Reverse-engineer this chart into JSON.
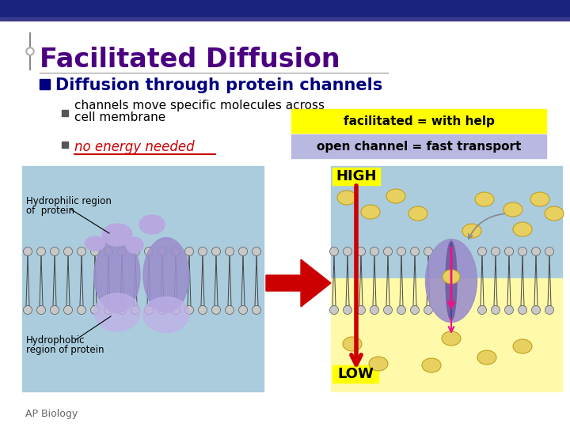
{
  "title": "Facilitated Diffusion",
  "subtitle": "Diffusion through protein channels",
  "bullet1_line1": "channels move specific molecules across",
  "bullet1_line2": "cell membrane",
  "bullet2": "no energy needed",
  "label1": "facilitated = with help",
  "label2": "open channel = fast transport",
  "high_label": "HIGH",
  "low_label": "LOW",
  "hydrophilic_line1": "Hydrophilic region",
  "hydrophilic_line2": "of  protein",
  "hydrophobic_line1": "Hydrophobic",
  "hydrophobic_line2": "region of protein",
  "ap_biology": "AP Biology",
  "bg_color": "#ffffff",
  "top_bar_color": "#1a237e",
  "accent_bar_color": "#3a3a8a",
  "title_color": "#4a0080",
  "subtitle_color": "#000080",
  "bullet_color": "#000000",
  "bullet2_color": "#cc0000",
  "bullet_diamond_color": "#555555",
  "yellow_box_color": "#ffff00",
  "lavender_box_color": "#b8b8e0",
  "light_blue_bg": "#aaccdd",
  "yellow_region": "#fffaaa",
  "membrane_head_color": "#c8c8c8",
  "membrane_protein_color": "#9b8fcc",
  "protein_dark_color": "#7060a0",
  "protein_light_color": "#b8a8e0",
  "molecule_color": "#e8d060",
  "molecule_edge_color": "#c0a020",
  "red_arrow_color": "#cc0000",
  "pink_arrow_color": "#ee1188",
  "curved_arrow_color": "#888888",
  "footer_color": "#666666",
  "annotation_color": "#000000"
}
